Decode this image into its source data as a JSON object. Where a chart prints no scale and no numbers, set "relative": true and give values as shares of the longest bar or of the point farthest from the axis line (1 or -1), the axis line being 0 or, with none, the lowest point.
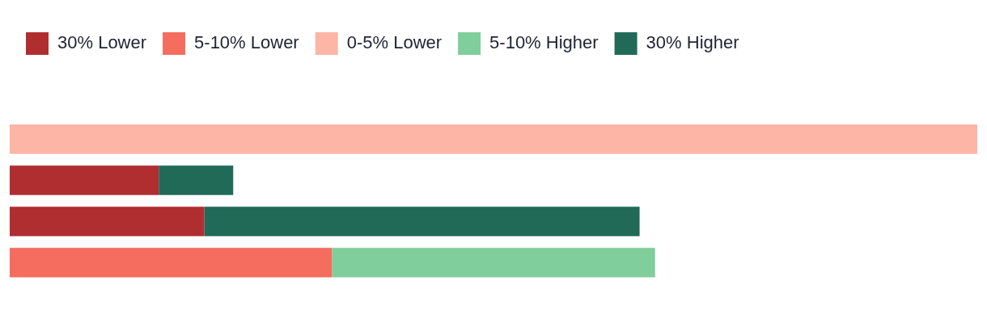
{
  "chart_data": {
    "type": "bar",
    "orientation": "horizontal",
    "stacked": true,
    "relative": true,
    "legend": "top left",
    "categories": [
      null,
      null,
      null,
      null
    ],
    "series": [
      {
        "name": "30% Lower",
        "color": "#b02e30",
        "values": [
          null,
          0.154,
          0.201,
          null
        ]
      },
      {
        "name": "5-10% Lower",
        "color": "#f46d5f",
        "values": [
          null,
          null,
          null,
          0.333
        ]
      },
      {
        "name": "0-5% Lower",
        "color": "#fdb5a6",
        "values": [
          1,
          null,
          null,
          null
        ]
      },
      {
        "name": "5-10% Higher",
        "color": "#80ce9c",
        "values": [
          null,
          null,
          null,
          0.334
        ]
      },
      {
        "name": "30% Higher",
        "color": "#216a58",
        "values": [
          null,
          0.077,
          0.45,
          null
        ]
      }
    ]
  }
}
